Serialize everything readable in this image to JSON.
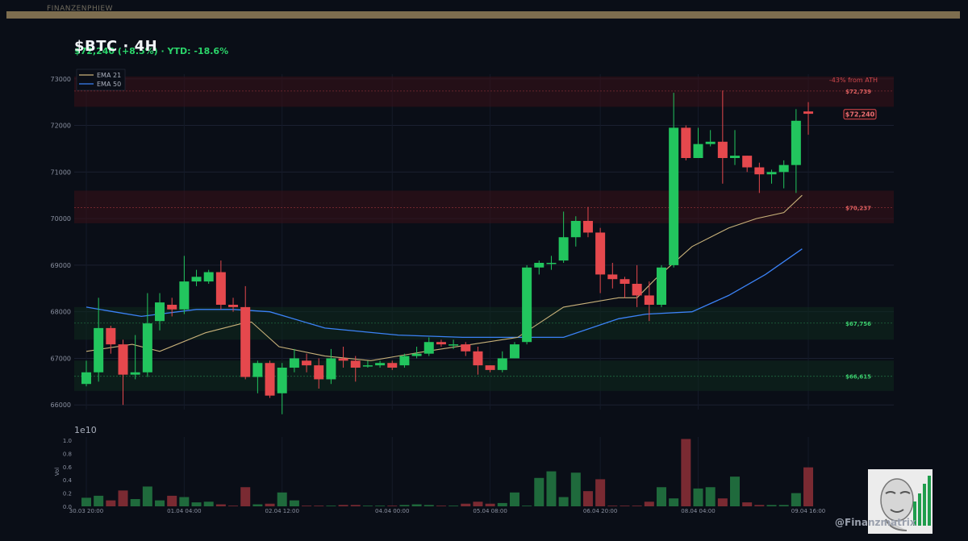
{
  "header": {
    "brand_strip": "FINANZENPHIEW",
    "title": "$BTC  ·  4H",
    "subtitle": "$72,240  (+8.5%)  ·  YTD: -18.6%"
  },
  "watermark": "@Finanzmatrix",
  "colors": {
    "background": "#0a0e17",
    "up": "#22c55e",
    "down": "#e5484d",
    "ema21": "#c9b27a",
    "ema50": "#3b82f6",
    "resistance_zone": "#3a1118",
    "support_zone": "#0e2a1e"
  },
  "chart_data": {
    "type": "candlestick",
    "timeframe": "4H",
    "ylim": [
      65900,
      73100
    ],
    "yticks": [
      66000,
      67000,
      68000,
      69000,
      70000,
      71000,
      72000,
      73000
    ],
    "grid": true,
    "legend": {
      "placement": "top-left",
      "entries": [
        "EMA 21",
        "EMA 50"
      ]
    },
    "xtick_labels": [
      "30.03 20:00",
      "01.04 04:00",
      "02.04 12:00",
      "04.04 00:00",
      "05.04 08:00",
      "06.04 20:00",
      "08.04 04:00",
      "09.04 16:00"
    ],
    "xtick_index": [
      0,
      8,
      16,
      25,
      33,
      42,
      50,
      59
    ],
    "candles": [
      [
        66450,
        66700,
        66400,
        66950
      ],
      [
        66700,
        67650,
        66500,
        68300
      ],
      [
        67650,
        67300,
        67100,
        67700
      ],
      [
        67300,
        66650,
        66000,
        67400
      ],
      [
        66650,
        66700,
        66550,
        67500
      ],
      [
        66700,
        67750,
        66600,
        68400
      ],
      [
        67800,
        68200,
        67600,
        68400
      ],
      [
        68150,
        68050,
        67900,
        68300
      ],
      [
        68050,
        68650,
        67950,
        69200
      ],
      [
        68650,
        68750,
        68550,
        68900
      ],
      [
        68650,
        68850,
        68600,
        68900
      ],
      [
        68850,
        68150,
        68050,
        69100
      ],
      [
        68150,
        68100,
        68000,
        68300
      ],
      [
        68100,
        66600,
        66550,
        68550
      ],
      [
        66600,
        66900,
        66250,
        66950
      ],
      [
        66900,
        66200,
        66150,
        66950
      ],
      [
        66250,
        66800,
        65800,
        66900
      ],
      [
        66800,
        67000,
        66700,
        67200
      ],
      [
        66950,
        66850,
        66700,
        67100
      ],
      [
        66850,
        66550,
        66350,
        67000
      ],
      [
        66550,
        67000,
        66450,
        67200
      ],
      [
        67000,
        66950,
        66800,
        67250
      ],
      [
        66950,
        66800,
        66500,
        67050
      ],
      [
        66850,
        66850,
        66800,
        66950
      ],
      [
        66850,
        66900,
        66800,
        66950
      ],
      [
        66900,
        66800,
        66750,
        66950
      ],
      [
        66850,
        67050,
        66800,
        67100
      ],
      [
        67050,
        67100,
        67000,
        67250
      ],
      [
        67100,
        67350,
        67050,
        67450
      ],
      [
        67350,
        67300,
        67250,
        67400
      ],
      [
        67300,
        67300,
        67200,
        67400
      ],
      [
        67300,
        67150,
        67050,
        67350
      ],
      [
        67150,
        66850,
        66650,
        67250
      ],
      [
        66850,
        66750,
        66700,
        66850
      ],
      [
        66750,
        67000,
        66700,
        67150
      ],
      [
        67000,
        67300,
        67000,
        67350
      ],
      [
        67350,
        68950,
        67300,
        69000
      ],
      [
        68950,
        69050,
        68800,
        69100
      ],
      [
        69050,
        69050,
        68900,
        69200
      ],
      [
        69100,
        69600,
        69050,
        70150
      ],
      [
        69600,
        69950,
        69400,
        70050
      ],
      [
        69950,
        69700,
        69600,
        70250
      ],
      [
        69700,
        68800,
        68400,
        69800
      ],
      [
        68800,
        68700,
        68500,
        69050
      ],
      [
        68700,
        68600,
        68300,
        68750
      ],
      [
        68600,
        68350,
        68100,
        69000
      ],
      [
        68350,
        68150,
        67800,
        68650
      ],
      [
        68150,
        68950,
        68100,
        69000
      ],
      [
        69000,
        71950,
        68950,
        72700
      ],
      [
        71950,
        71300,
        71250,
        72000
      ],
      [
        71300,
        71600,
        71300,
        71950
      ],
      [
        71600,
        71650,
        71550,
        71900
      ],
      [
        71650,
        71300,
        70750,
        72750
      ],
      [
        71300,
        71350,
        71150,
        71900
      ],
      [
        71350,
        71100,
        71000,
        71350
      ],
      [
        71100,
        70950,
        70550,
        71200
      ],
      [
        70950,
        71000,
        70750,
        71050
      ],
      [
        71000,
        71150,
        70650,
        71250
      ],
      [
        71150,
        72100,
        70550,
        72350
      ],
      [
        72300,
        72250,
        71800,
        72500
      ]
    ],
    "ema21": [
      [
        0,
        67150
      ],
      [
        5,
        67300
      ],
      [
        8,
        67150
      ],
      [
        13,
        67550
      ],
      [
        17,
        67750
      ],
      [
        18,
        67780
      ],
      [
        21,
        67250
      ],
      [
        26,
        67050
      ],
      [
        31,
        66950
      ],
      [
        37,
        67150
      ],
      [
        47,
        67450
      ],
      [
        52,
        68100
      ],
      [
        58,
        68300
      ],
      [
        60,
        68300
      ],
      [
        62,
        68700
      ],
      [
        66,
        69400
      ],
      [
        70,
        69800
      ],
      [
        73,
        70000
      ],
      [
        76,
        70130
      ],
      [
        78,
        70500
      ]
    ],
    "ema50": [
      [
        0,
        68100
      ],
      [
        3,
        68000
      ],
      [
        6,
        67900
      ],
      [
        12,
        68050
      ],
      [
        16,
        68050
      ],
      [
        20,
        68000
      ],
      [
        26,
        67650
      ],
      [
        34,
        67500
      ],
      [
        41,
        67450
      ],
      [
        46,
        67450
      ],
      [
        50,
        67450
      ],
      [
        52,
        67450
      ],
      [
        58,
        67850
      ],
      [
        61,
        67950
      ],
      [
        66,
        68000
      ],
      [
        70,
        68350
      ],
      [
        74,
        68800
      ],
      [
        78,
        69350
      ]
    ],
    "ema_x_scale_note": "",
    "levels": [
      {
        "price": 72739,
        "label": "$72,739",
        "kind": "resistance",
        "zone": [
          72400,
          73050
        ]
      },
      {
        "price": 70237,
        "label": "$70,237",
        "kind": "resistance",
        "zone": [
          69900,
          70600
        ]
      },
      {
        "price": 67756,
        "label": "$67,756",
        "kind": "support",
        "zone": [
          67400,
          68100
        ]
      },
      {
        "price": 66615,
        "label": "$66,615",
        "kind": "support",
        "zone": [
          66300,
          66950
        ]
      }
    ],
    "annotation": "-43% from ATH",
    "current_price_label": "$72,240",
    "current_price": 72240,
    "volume": {
      "scale_label": "1e10",
      "ylabel": "Vol",
      "yticks": [
        0.0,
        0.2,
        0.4,
        0.6,
        0.8,
        1.0
      ],
      "ytick_labels": [
        "0.0",
        "0.2",
        "0.4",
        "0.6",
        "0.8",
        "1.0"
      ],
      "ylim": [
        0,
        1.05
      ],
      "values": [
        0.13,
        0.16,
        0.09,
        0.24,
        0.11,
        0.3,
        0.09,
        0.16,
        0.14,
        0.06,
        0.07,
        0.03,
        0.01,
        0.29,
        0.03,
        0.04,
        0.21,
        0.09,
        0.01,
        0.01,
        0.01,
        0.02,
        0.02,
        0.01,
        0.01,
        0.01,
        0.02,
        0.03,
        0.02,
        0.01,
        0.01,
        0.04,
        0.07,
        0.04,
        0.05,
        0.21,
        0.01,
        0.43,
        0.53,
        0.14,
        0.51,
        0.23,
        0.41,
        0.01,
        0.01,
        0.01,
        0.07,
        0.29,
        0.12,
        1.02,
        0.27,
        0.29,
        0.12,
        0.45,
        0.06,
        0.02,
        0.02,
        0.02,
        0.2,
        0.59
      ]
    }
  }
}
